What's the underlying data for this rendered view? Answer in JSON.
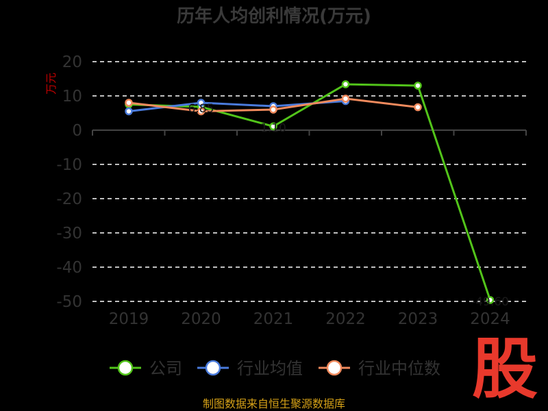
{
  "chart_data": {
    "type": "line",
    "title": "历年人均创利情况(万元)",
    "ylabel": "万元",
    "categories": [
      "2019",
      "2020",
      "2021",
      "2022",
      "2023",
      "2024"
    ],
    "ylim": [
      -50,
      20
    ],
    "yticks": [
      20,
      10,
      0,
      -10,
      -20,
      -30,
      -40,
      -50
    ],
    "grid": true,
    "legend_position": "bottom",
    "series": [
      {
        "name": "公司",
        "color": "#52c41a",
        "values": [
          7.5,
          6.8,
          1.1,
          13.4,
          13.0,
          -49.6
        ],
        "labels": [
          "",
          "6.85",
          "1.10",
          "",
          "",
          "-49.60"
        ]
      },
      {
        "name": "行业均值",
        "color": "#4a7bdc",
        "values": [
          5.5,
          8.0,
          7.0,
          8.5,
          null,
          null
        ]
      },
      {
        "name": "行业中位数",
        "color": "#f08a5d",
        "values": [
          8.0,
          5.5,
          6.0,
          9.2,
          6.7,
          null
        ]
      }
    ]
  },
  "source_text": "制图数据来自恒生聚源数据库",
  "logo": {
    "text": "股",
    "color": "#e8392c"
  }
}
